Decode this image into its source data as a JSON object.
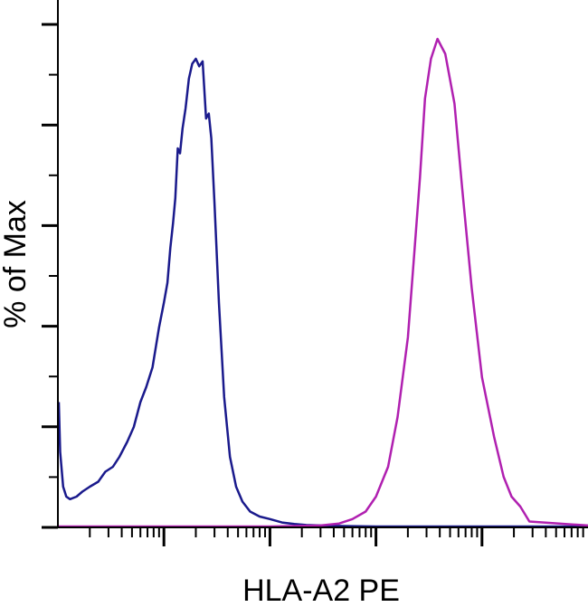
{
  "chart_data": {
    "type": "line",
    "title": "",
    "xlabel": "HLA-A2 PE",
    "ylabel": "% of Max",
    "x_scale": "log",
    "xlim": [
      10,
      1000000
    ],
    "ylim": [
      0,
      100
    ],
    "grid": false,
    "legend": "none",
    "series": [
      {
        "color": "#1a1a8c",
        "x": [
          10,
          10.5,
          11.2,
          12,
          13,
          15,
          17,
          20,
          24,
          28,
          33,
          38,
          45,
          52,
          60,
          68,
          78,
          90,
          100,
          108,
          115,
          122,
          128,
          135,
          142,
          150,
          160,
          172,
          185,
          200,
          215,
          232,
          250,
          265,
          280,
          300,
          330,
          370,
          420,
          480,
          550,
          650,
          800,
          1000,
          1300,
          1700,
          2200,
          3000,
          5000,
          10000,
          100000,
          1000000
        ],
        "y": [
          25,
          15,
          8,
          6,
          5.5,
          6,
          7,
          8,
          9,
          11,
          12,
          14,
          17,
          20,
          25,
          28,
          32,
          40,
          45,
          49,
          56,
          61,
          66,
          76,
          75,
          80,
          84,
          90,
          93,
          94,
          92.5,
          93.5,
          82,
          83,
          78,
          65,
          45,
          26,
          14,
          8,
          5,
          3,
          2,
          1.5,
          0.8,
          0.5,
          0.3,
          0.2,
          0.1,
          0,
          0,
          0
        ]
      },
      {
        "color": "#b020b0",
        "x": [
          10,
          100,
          1000,
          3000,
          4500,
          6000,
          8000,
          10000,
          13000,
          16000,
          20000,
          23000,
          26000,
          29000,
          33000,
          38000,
          45000,
          55000,
          65000,
          80000,
          100000,
          130000,
          160000,
          190000,
          230000,
          280000,
          1000000
        ],
        "y": [
          0,
          0,
          0,
          0.2,
          0.6,
          1.5,
          3,
          6,
          12,
          22,
          38,
          55,
          70,
          86,
          94,
          98,
          95,
          85,
          68,
          48,
          30,
          18,
          10,
          6,
          4,
          1,
          0.2
        ]
      }
    ],
    "x_ticks": {
      "major": [
        100,
        1000,
        10000,
        100000
      ],
      "minor": [
        20,
        30,
        40,
        50,
        60,
        70,
        80,
        90,
        200,
        300,
        400,
        500,
        600,
        700,
        800,
        900,
        2000,
        3000,
        4000,
        5000,
        6000,
        7000,
        8000,
        9000,
        20000,
        30000,
        40000,
        50000,
        60000,
        70000,
        80000,
        90000,
        200000,
        300000,
        400000,
        500000,
        600000,
        700000,
        800000,
        900000
      ]
    },
    "y_ticks": {
      "major": [
        0,
        20,
        40,
        60,
        80,
        100
      ],
      "minor": [
        10,
        30,
        50,
        70,
        90
      ]
    }
  }
}
